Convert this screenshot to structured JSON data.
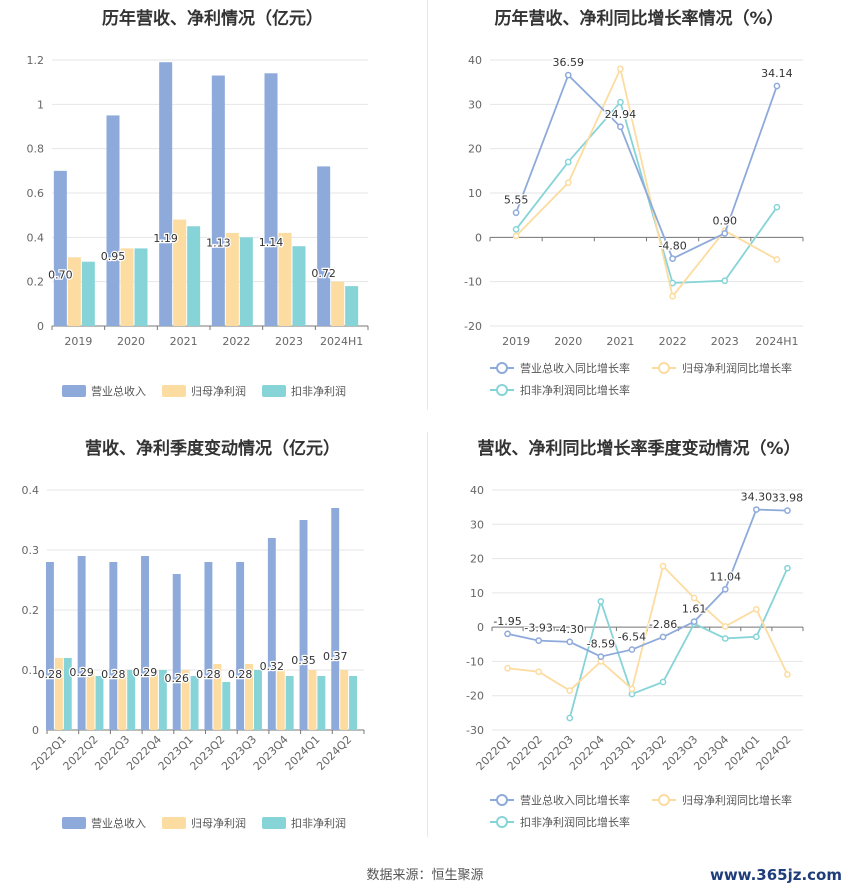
{
  "source_text": "数据来源：恒生聚源",
  "watermark": "www.365jz.com",
  "chart_data": [
    {
      "type": "bar",
      "title": "历年营收、净利情况（亿元）",
      "categories": [
        "2019",
        "2020",
        "2021",
        "2022",
        "2023",
        "2024H1"
      ],
      "ylim": [
        0,
        1.2
      ],
      "yticks": [
        "0",
        "0.2",
        "0.4",
        "0.6",
        "0.8",
        "1",
        "1.2"
      ],
      "grid": true,
      "legend_position": "bottom",
      "series": [
        {
          "name": "营业总收入",
          "color": "#8eaadb",
          "values": [
            0.7,
            0.95,
            1.19,
            1.13,
            1.14,
            0.72
          ],
          "labels": [
            "0.70",
            "0.95",
            "1.19",
            "1.13",
            "1.14",
            "0.72"
          ]
        },
        {
          "name": "归母净利润",
          "color": "#fcdca0",
          "values": [
            0.31,
            0.35,
            0.48,
            0.42,
            0.42,
            0.2
          ]
        },
        {
          "name": "扣非净利润",
          "color": "#86d4d8",
          "values": [
            0.29,
            0.35,
            0.45,
            0.4,
            0.36,
            0.18
          ]
        }
      ]
    },
    {
      "type": "line",
      "title": "历年营收、净利同比增长率情况（%）",
      "categories": [
        "2019",
        "2020",
        "2021",
        "2022",
        "2023",
        "2024H1"
      ],
      "ylim": [
        -20,
        40
      ],
      "yticks": [
        "-20",
        "-10",
        "0",
        "10",
        "20",
        "30",
        "40"
      ],
      "grid": true,
      "legend_position": "bottom",
      "series": [
        {
          "name": "营业总收入同比增长率",
          "color": "#8eaadb",
          "values": [
            5.55,
            36.59,
            24.94,
            -4.8,
            0.9,
            34.14
          ],
          "labels": [
            "5.55",
            "36.59",
            "24.94",
            "-4.80",
            "0.90",
            "34.14"
          ]
        },
        {
          "name": "归母净利润同比增长率",
          "color": "#fcdca0",
          "values": [
            0.3,
            12.3,
            38.0,
            -13.3,
            1.5,
            -5.0
          ]
        },
        {
          "name": "扣非净利润同比增长率",
          "color": "#86d4d8",
          "values": [
            1.8,
            17.0,
            30.5,
            -10.3,
            -9.8,
            6.8
          ]
        }
      ]
    },
    {
      "type": "bar",
      "title": "营收、净利季度变动情况（亿元）",
      "categories": [
        "2022Q1",
        "2022Q2",
        "2022Q3",
        "2022Q4",
        "2023Q1",
        "2023Q2",
        "2023Q3",
        "2023Q4",
        "2024Q1",
        "2024Q2"
      ],
      "ylim": [
        0,
        0.4
      ],
      "yticks": [
        "0",
        "0.1",
        "0.2",
        "0.3",
        "0.4"
      ],
      "grid": true,
      "legend_position": "bottom",
      "series": [
        {
          "name": "营业总收入",
          "color": "#8eaadb",
          "values": [
            0.28,
            0.29,
            0.28,
            0.29,
            0.26,
            0.28,
            0.28,
            0.32,
            0.35,
            0.37
          ],
          "labels": [
            "0.28",
            "0.29",
            "0.28",
            "0.29",
            "0.26",
            "0.28",
            "0.28",
            "0.32",
            "0.35",
            "0.37"
          ]
        },
        {
          "name": "归母净利润",
          "color": "#fcdca0",
          "values": [
            0.12,
            0.1,
            0.1,
            0.1,
            0.1,
            0.11,
            0.11,
            0.1,
            0.1,
            0.1
          ]
        },
        {
          "name": "扣非净利润",
          "color": "#86d4d8",
          "values": [
            0.12,
            0.09,
            0.1,
            0.1,
            0.09,
            0.08,
            0.1,
            0.09,
            0.09,
            0.09
          ]
        }
      ]
    },
    {
      "type": "line",
      "title": "营收、净利同比增长率季度变动情况（%）",
      "categories": [
        "2022Q1",
        "2022Q2",
        "2022Q3",
        "2022Q4",
        "2023Q1",
        "2023Q2",
        "2023Q3",
        "2023Q4",
        "2024Q1",
        "2024Q2"
      ],
      "ylim": [
        -30,
        40
      ],
      "yticks": [
        "-30",
        "-20",
        "-10",
        "0",
        "10",
        "20",
        "30",
        "40"
      ],
      "grid": true,
      "legend_position": "bottom",
      "series": [
        {
          "name": "营业总收入同比增长率",
          "color": "#8eaadb",
          "values": [
            -1.95,
            -3.93,
            -4.3,
            -8.59,
            -6.54,
            -2.86,
            1.61,
            11.04,
            34.3,
            33.98
          ],
          "labels": [
            "-1.95",
            "-3.93",
            "-4.30",
            "-8.59",
            "-6.54",
            "-2.86",
            "1.61",
            "11.04",
            "34.30",
            "33.98"
          ]
        },
        {
          "name": "归母净利润同比增长率",
          "color": "#fcdca0",
          "values": [
            -12.0,
            -13.0,
            -18.5,
            -10.0,
            -18.0,
            17.8,
            8.5,
            0.2,
            5.2,
            -13.8
          ]
        },
        {
          "name": "扣非净利润同比增长率",
          "color": "#86d4d8",
          "values": [
            null,
            null,
            -26.5,
            7.5,
            -19.5,
            -16.0,
            1.0,
            -3.3,
            -2.8,
            17.2
          ]
        }
      ]
    }
  ]
}
